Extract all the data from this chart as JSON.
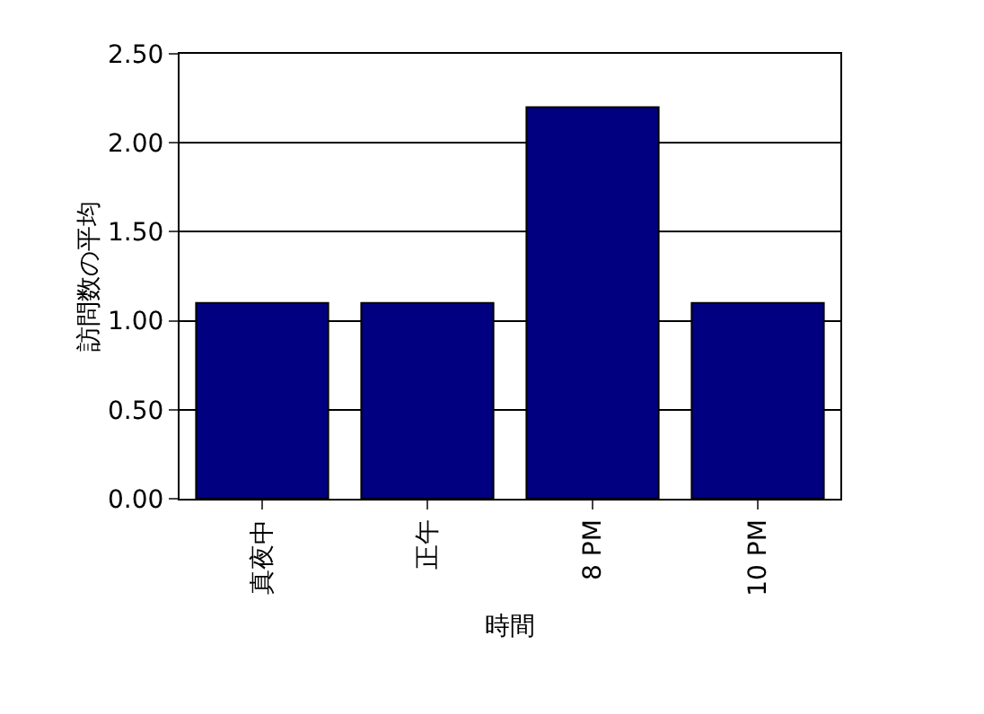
{
  "chart_data": {
    "type": "bar",
    "xlabel": "時間",
    "ylabel": "訪問数の平均",
    "categories": [
      "真夜中",
      "正午",
      "8 PM",
      "10 PM"
    ],
    "values": [
      1.1,
      1.1,
      2.2,
      1.1
    ],
    "color": "#000080",
    "ylim": [
      0,
      2.5
    ],
    "yticks": [
      {
        "value": 0,
        "label": "0.00"
      },
      {
        "value": 0.5,
        "label": "0.50"
      },
      {
        "value": 1,
        "label": "1.00"
      },
      {
        "value": 1.5,
        "label": "1.50"
      },
      {
        "value": 2,
        "label": "2.00"
      },
      {
        "value": 2.5,
        "label": "2.50"
      }
    ],
    "grid": "y"
  }
}
